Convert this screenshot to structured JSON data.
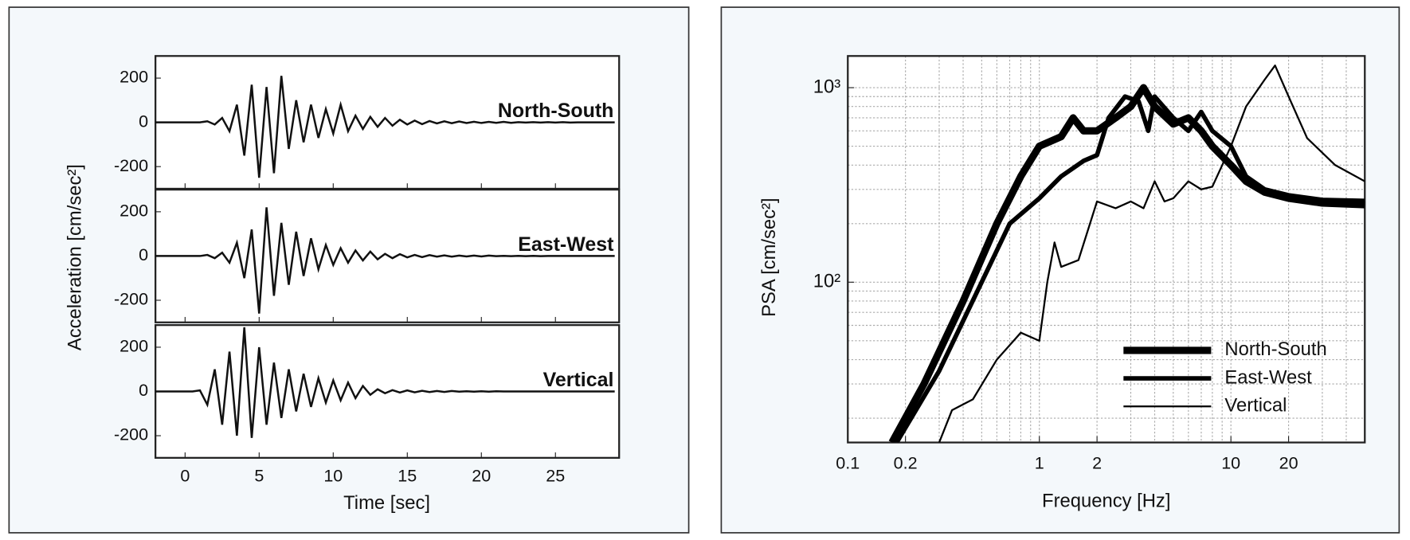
{
  "chart_data": [
    {
      "type": "line",
      "layout": "stacked",
      "xlabel": "Time [sec]",
      "ylabel": "Acceleration [cm/sec²]",
      "xlim": [
        -2,
        29.3
      ],
      "xticks": [
        0,
        5,
        10,
        15,
        20,
        25
      ],
      "ylim": [
        -300,
        300
      ],
      "yticks": [
        200,
        0,
        -200
      ],
      "x": [
        -2,
        -1.5,
        -1,
        -0.5,
        0,
        0.5,
        1,
        1.5,
        2,
        2.5,
        3,
        3.5,
        4,
        4.5,
        5,
        5.5,
        6,
        6.5,
        7,
        7.5,
        8,
        8.5,
        9,
        9.5,
        10,
        10.5,
        11,
        11.5,
        12,
        12.5,
        13,
        13.5,
        14,
        14.5,
        15,
        15.5,
        16,
        16.5,
        17,
        17.5,
        18,
        18.5,
        19,
        19.5,
        20,
        20.5,
        21,
        21.5,
        22,
        22.5,
        23,
        23.5,
        24,
        24.5,
        25,
        25.5,
        26,
        26.5,
        27,
        27.5,
        28,
        28.5,
        29
      ],
      "series": [
        {
          "name": "North-South",
          "color": "#111111",
          "values": [
            0,
            0,
            0,
            0,
            0,
            0,
            0,
            5,
            -10,
            20,
            -40,
            80,
            -150,
            170,
            -250,
            160,
            -230,
            210,
            -120,
            100,
            -90,
            80,
            -70,
            60,
            -50,
            80,
            -40,
            30,
            -30,
            25,
            -20,
            20,
            -15,
            12,
            -10,
            8,
            -8,
            6,
            -5,
            5,
            -4,
            4,
            -3,
            3,
            -3,
            2,
            -2,
            2,
            -2,
            1,
            -1,
            1,
            -1,
            1,
            -1,
            1,
            -1,
            0,
            0,
            0,
            0,
            0,
            0
          ]
        },
        {
          "name": "East-West",
          "color": "#111111",
          "values": [
            0,
            0,
            0,
            0,
            0,
            0,
            0,
            5,
            -10,
            15,
            -30,
            60,
            -100,
            120,
            -260,
            220,
            -180,
            150,
            -130,
            110,
            -90,
            80,
            -60,
            50,
            -40,
            35,
            -30,
            25,
            -20,
            20,
            -15,
            10,
            -10,
            8,
            -6,
            5,
            -5,
            4,
            -3,
            3,
            -3,
            2,
            -2,
            2,
            -2,
            2,
            -1,
            1,
            -1,
            1,
            -1,
            1,
            -1,
            0,
            0,
            0,
            0,
            0,
            0,
            0,
            0,
            0,
            0
          ]
        },
        {
          "name": "Vertical",
          "color": "#111111",
          "values": [
            0,
            0,
            0,
            0,
            0,
            0,
            5,
            -60,
            100,
            -150,
            180,
            -200,
            290,
            -210,
            200,
            -150,
            130,
            -120,
            100,
            -90,
            80,
            -70,
            60,
            -50,
            50,
            -40,
            40,
            -30,
            25,
            -15,
            10,
            -8,
            6,
            -5,
            5,
            -4,
            3,
            -3,
            2,
            -2,
            2,
            -1,
            1,
            -1,
            1,
            -1,
            1,
            0,
            0,
            0,
            0,
            0,
            0,
            0,
            0,
            0,
            0,
            0,
            0,
            0,
            0,
            0,
            0
          ]
        }
      ]
    },
    {
      "type": "line",
      "log_x": true,
      "log_y": true,
      "grid": true,
      "legend": "lower right",
      "xlabel": "Frequency [Hz]",
      "ylabel": "PSA [cm/sec²]",
      "xlim": [
        0.1,
        50
      ],
      "xticks": [
        0.1,
        0.2,
        1,
        2,
        10,
        20
      ],
      "ylim": [
        15,
        1455
      ],
      "yticks": [
        {
          "value": 1000,
          "label": "10³"
        },
        {
          "value": 100,
          "label": "10²"
        }
      ],
      "xgrid": [
        0.2,
        0.3,
        0.4,
        0.5,
        0.6,
        0.7,
        0.8,
        0.9,
        1,
        2,
        3,
        4,
        5,
        6,
        7,
        8,
        9,
        10,
        20,
        30,
        40
      ],
      "ygrid": [
        20,
        30,
        40,
        50,
        60,
        70,
        80,
        90,
        100,
        200,
        300,
        400,
        500,
        600,
        700,
        800,
        900,
        1000
      ],
      "series": [
        {
          "name": "North-South",
          "color": "#000000",
          "linewidth": 8,
          "x": [
            0.17,
            0.25,
            0.4,
            0.6,
            0.8,
            1,
            1.3,
            1.5,
            1.7,
            2,
            2.5,
            3,
            3.5,
            4,
            5,
            6,
            7,
            8,
            10,
            12,
            15,
            20,
            30,
            50
          ],
          "values": [
            15,
            30,
            80,
            200,
            350,
            500,
            560,
            700,
            600,
            600,
            700,
            800,
            1000,
            800,
            650,
            700,
            600,
            500,
            400,
            330,
            290,
            270,
            255,
            250
          ]
        },
        {
          "name": "East-West",
          "color": "#000000",
          "linewidth": 5,
          "x": [
            0.18,
            0.3,
            0.5,
            0.7,
            1,
            1.3,
            1.7,
            2,
            2.3,
            2.8,
            3.3,
            3.7,
            4,
            5,
            6,
            7,
            8,
            10,
            12,
            15,
            20,
            30,
            50
          ],
          "values": [
            15,
            35,
            100,
            200,
            270,
            350,
            420,
            450,
            700,
            900,
            850,
            600,
            900,
            700,
            600,
            750,
            600,
            500,
            350,
            300,
            280,
            265,
            262
          ]
        },
        {
          "name": "Vertical",
          "color": "#000000",
          "linewidth": 2,
          "x": [
            0.3,
            0.35,
            0.45,
            0.6,
            0.8,
            1,
            1.1,
            1.2,
            1.3,
            1.6,
            2,
            2.5,
            3,
            3.5,
            4,
            4.5,
            5,
            6,
            7,
            8,
            10,
            12,
            15,
            17,
            20,
            25,
            35,
            50
          ],
          "values": [
            15,
            22,
            25,
            40,
            55,
            50,
            100,
            160,
            120,
            130,
            260,
            240,
            260,
            240,
            330,
            260,
            270,
            330,
            300,
            310,
            500,
            800,
            1100,
            1300,
            900,
            550,
            400,
            330
          ]
        }
      ]
    }
  ]
}
